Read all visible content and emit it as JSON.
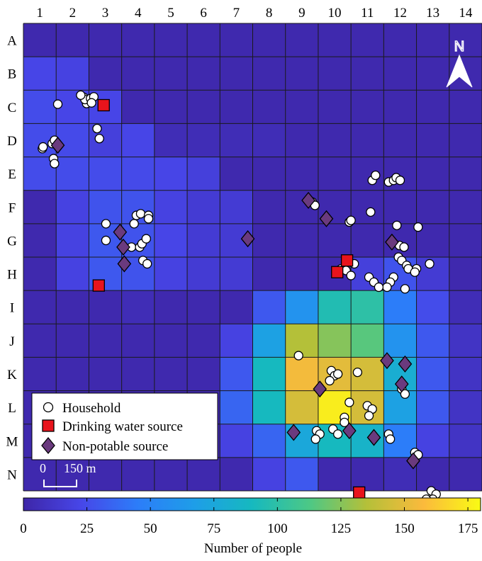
{
  "columns": [
    "1",
    "2",
    "3",
    "4",
    "5",
    "6",
    "7",
    "8",
    "9",
    "10",
    "11",
    "12",
    "13",
    "14"
  ],
  "rows": [
    "A",
    "B",
    "C",
    "D",
    "E",
    "F",
    "G",
    "H",
    "I",
    "J",
    "K",
    "L",
    "M",
    "N"
  ],
  "grid_values": [
    [
      2,
      2,
      2,
      2,
      2,
      2,
      2,
      2,
      2,
      2,
      2,
      2,
      2,
      2
    ],
    [
      22,
      20,
      2,
      2,
      2,
      2,
      2,
      2,
      2,
      2,
      2,
      2,
      2,
      2
    ],
    [
      25,
      22,
      22,
      2,
      2,
      2,
      2,
      2,
      2,
      2,
      2,
      2,
      2,
      2
    ],
    [
      25,
      24,
      18,
      22,
      5,
      5,
      5,
      5,
      2,
      2,
      2,
      2,
      2,
      2
    ],
    [
      25,
      25,
      25,
      24,
      22,
      18,
      2,
      2,
      2,
      2,
      2,
      2,
      2,
      2
    ],
    [
      2,
      20,
      28,
      28,
      20,
      15,
      15,
      2,
      2,
      2,
      2,
      2,
      2,
      2
    ],
    [
      2,
      20,
      30,
      28,
      22,
      15,
      15,
      2,
      2,
      2,
      2,
      2,
      2,
      2
    ],
    [
      2,
      20,
      30,
      28,
      20,
      15,
      15,
      2,
      2,
      2,
      18,
      28,
      15,
      2
    ],
    [
      2,
      2,
      2,
      5,
      2,
      2,
      2,
      30,
      60,
      95,
      100,
      45,
      25,
      5
    ],
    [
      2,
      2,
      2,
      2,
      2,
      2,
      20,
      70,
      135,
      125,
      115,
      60,
      30,
      10
    ],
    [
      2,
      2,
      2,
      2,
      2,
      2,
      30,
      90,
      155,
      150,
      145,
      80,
      30,
      10
    ],
    [
      2,
      2,
      2,
      2,
      2,
      2,
      35,
      90,
      145,
      175,
      145,
      70,
      30,
      10
    ],
    [
      2,
      2,
      2,
      2,
      2,
      2,
      20,
      35,
      75,
      90,
      85,
      45,
      20,
      10
    ],
    [
      2,
      2,
      2,
      2,
      2,
      2,
      2,
      20,
      30,
      2,
      2,
      5,
      2,
      2
    ]
  ],
  "households": [
    [
      1.93,
      2.4
    ],
    [
      1.85,
      2.22
    ],
    [
      1.88,
      2.28
    ],
    [
      2.05,
      2.25
    ],
    [
      2.15,
      2.2
    ],
    [
      1.75,
      2.15
    ],
    [
      2.08,
      2.38
    ],
    [
      1.05,
      2.42
    ],
    [
      0.58,
      3.75
    ],
    [
      0.6,
      3.7
    ],
    [
      0.88,
      3.6
    ],
    [
      0.95,
      3.5
    ],
    [
      0.92,
      4.05
    ],
    [
      0.95,
      4.2
    ],
    [
      2.25,
      3.15
    ],
    [
      2.32,
      3.45
    ],
    [
      2.52,
      6.0
    ],
    [
      3.38,
      6.0
    ],
    [
      3.45,
      5.75
    ],
    [
      3.58,
      5.7
    ],
    [
      3.82,
      5.75
    ],
    [
      3.82,
      5.85
    ],
    [
      2.52,
      6.5
    ],
    [
      3.3,
      6.7
    ],
    [
      3.55,
      6.7
    ],
    [
      3.62,
      6.6
    ],
    [
      3.75,
      6.45
    ],
    [
      3.65,
      7.1
    ],
    [
      3.78,
      7.2
    ],
    [
      8.82,
      5.35
    ],
    [
      8.9,
      5.45
    ],
    [
      9.95,
      5.95
    ],
    [
      10.0,
      5.9
    ],
    [
      10.65,
      4.7
    ],
    [
      10.75,
      4.55
    ],
    [
      11.15,
      4.75
    ],
    [
      11.3,
      4.7
    ],
    [
      11.38,
      4.62
    ],
    [
      11.5,
      4.7
    ],
    [
      10.6,
      5.65
    ],
    [
      11.4,
      6.05
    ],
    [
      12.05,
      6.1
    ],
    [
      11.48,
      6.65
    ],
    [
      11.62,
      6.7
    ],
    [
      11.45,
      7.0
    ],
    [
      11.55,
      7.1
    ],
    [
      11.7,
      7.25
    ],
    [
      11.75,
      7.35
    ],
    [
      11.3,
      7.6
    ],
    [
      11.2,
      7.75
    ],
    [
      11.1,
      7.9
    ],
    [
      12.0,
      7.35
    ],
    [
      11.95,
      7.45
    ],
    [
      12.4,
      7.2
    ],
    [
      9.7,
      7.35
    ],
    [
      9.85,
      7.4
    ],
    [
      10.1,
      7.2
    ],
    [
      10.0,
      7.55
    ],
    [
      10.55,
      7.6
    ],
    [
      10.7,
      7.75
    ],
    [
      10.85,
      7.9
    ],
    [
      11.65,
      7.95
    ],
    [
      8.4,
      9.95
    ],
    [
      9.4,
      10.4
    ],
    [
      9.5,
      10.55
    ],
    [
      9.6,
      10.5
    ],
    [
      9.35,
      10.7
    ],
    [
      10.2,
      10.45
    ],
    [
      11.55,
      10.95
    ],
    [
      11.65,
      11.1
    ],
    [
      9.95,
      11.35
    ],
    [
      10.5,
      11.45
    ],
    [
      10.65,
      11.55
    ],
    [
      10.55,
      11.75
    ],
    [
      9.8,
      11.8
    ],
    [
      9.8,
      11.95
    ],
    [
      9.45,
      12.15
    ],
    [
      9.6,
      12.3
    ],
    [
      8.95,
      12.2
    ],
    [
      9.05,
      12.3
    ],
    [
      8.92,
      12.45
    ],
    [
      11.15,
      12.3
    ],
    [
      11.2,
      12.45
    ],
    [
      11.95,
      12.85
    ],
    [
      12.05,
      12.92
    ],
    [
      12.45,
      14.0
    ],
    [
      12.6,
      14.1
    ],
    [
      12.5,
      14.25
    ],
    [
      12.3,
      14.25
    ],
    [
      12.35,
      14.4
    ]
  ],
  "drinking_sources": [
    [
      2.45,
      2.45
    ],
    [
      2.3,
      7.85
    ],
    [
      9.88,
      7.1
    ],
    [
      9.58,
      7.45
    ],
    [
      10.25,
      14.05
    ]
  ],
  "nonpotable_sources": [
    [
      1.05,
      3.65
    ],
    [
      2.95,
      6.25
    ],
    [
      3.05,
      6.7
    ],
    [
      3.08,
      7.2
    ],
    [
      6.85,
      6.45
    ],
    [
      8.7,
      5.3
    ],
    [
      9.25,
      5.85
    ],
    [
      11.25,
      6.55
    ],
    [
      11.1,
      10.1
    ],
    [
      11.65,
      10.2
    ],
    [
      11.55,
      10.8
    ],
    [
      9.05,
      10.95
    ],
    [
      8.25,
      12.25
    ],
    [
      9.95,
      12.2
    ],
    [
      10.7,
      12.4
    ],
    [
      11.9,
      13.1
    ]
  ],
  "north_label": "N",
  "legend": {
    "household": "Household",
    "drinking": "Drinking water source",
    "nonpotable": "Non-potable source"
  },
  "scale_bar": {
    "start": "0",
    "end": "150 m"
  },
  "colorbar": {
    "ticks": [
      "0",
      "25",
      "50",
      "75",
      "100",
      "125",
      "150",
      "175"
    ],
    "tick_values": [
      0,
      25,
      50,
      75,
      100,
      125,
      150,
      175
    ],
    "range": [
      0,
      180
    ],
    "label": "Number of people"
  },
  "colors": {
    "household_fill": "#ffffff",
    "drinking_fill": "#e8141c",
    "nonpotable_fill": "#6a3a7e"
  }
}
